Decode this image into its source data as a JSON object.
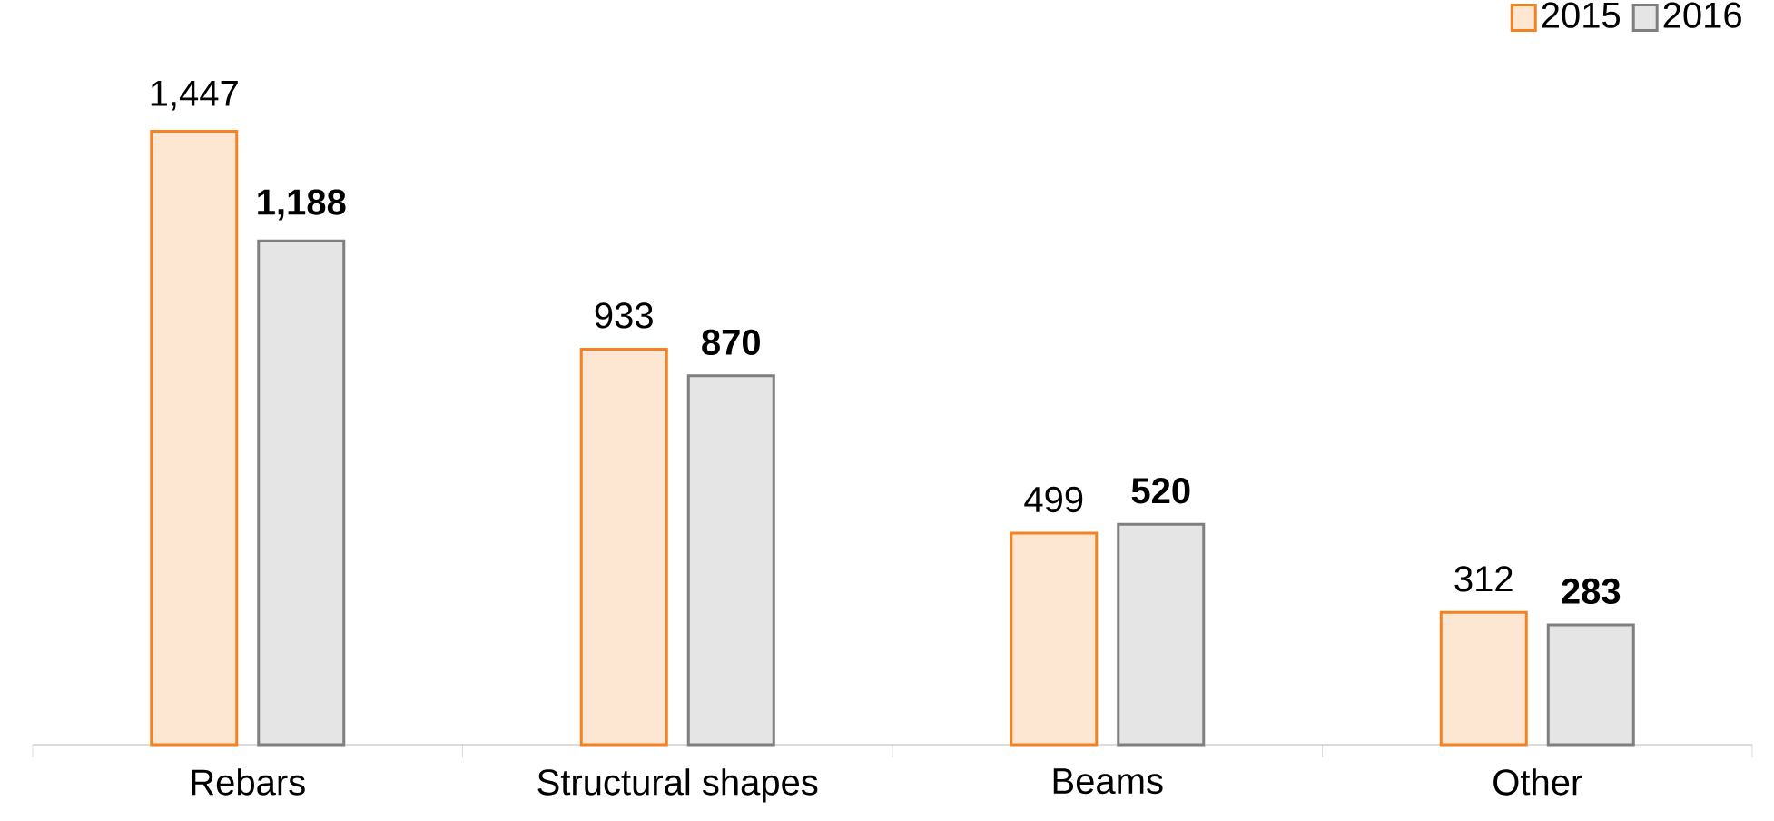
{
  "chart_data": {
    "type": "bar",
    "legend": "top right",
    "categories": [
      "Rebars",
      "Structural shapes",
      "Beams",
      "Other"
    ],
    "series": [
      {
        "name": "2015",
        "color": "#f58220",
        "values": [
          1447,
          933,
          499,
          312
        ],
        "value_labels": [
          "1,447",
          "933",
          "499",
          "312"
        ]
      },
      {
        "name": "2016",
        "color": "#7f7f7f",
        "values": [
          1188,
          870,
          520,
          283
        ],
        "value_labels": [
          "**1,188**",
          "**870**",
          "**520**",
          "**283**"
        ]
      }
    ]
  }
}
